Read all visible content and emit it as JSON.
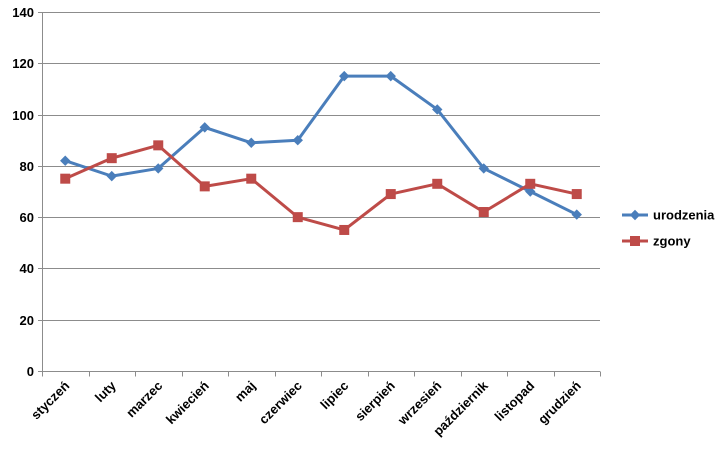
{
  "chart_data": {
    "type": "line",
    "title": "",
    "xlabel": "",
    "ylabel": "",
    "categories": [
      "styczeń",
      "luty",
      "marzec",
      "kwiecień",
      "maj",
      "czerwiec",
      "lipiec",
      "sierpień",
      "wrzesień",
      "październik",
      "listopad",
      "grudzień"
    ],
    "ylim": [
      0,
      140
    ],
    "yticks": [
      0,
      20,
      40,
      60,
      80,
      100,
      120,
      140
    ],
    "grid": true,
    "legend_position": "right",
    "series": [
      {
        "name": "urodzenia",
        "color": "#4a7ebb",
        "marker": "diamond",
        "values": [
          82,
          76,
          79,
          95,
          89,
          90,
          115,
          115,
          102,
          79,
          70,
          61
        ]
      },
      {
        "name": "zgony",
        "color": "#be4b48",
        "marker": "square",
        "values": [
          75,
          83,
          88,
          72,
          75,
          60,
          55,
          69,
          73,
          62,
          73,
          69
        ]
      }
    ]
  }
}
